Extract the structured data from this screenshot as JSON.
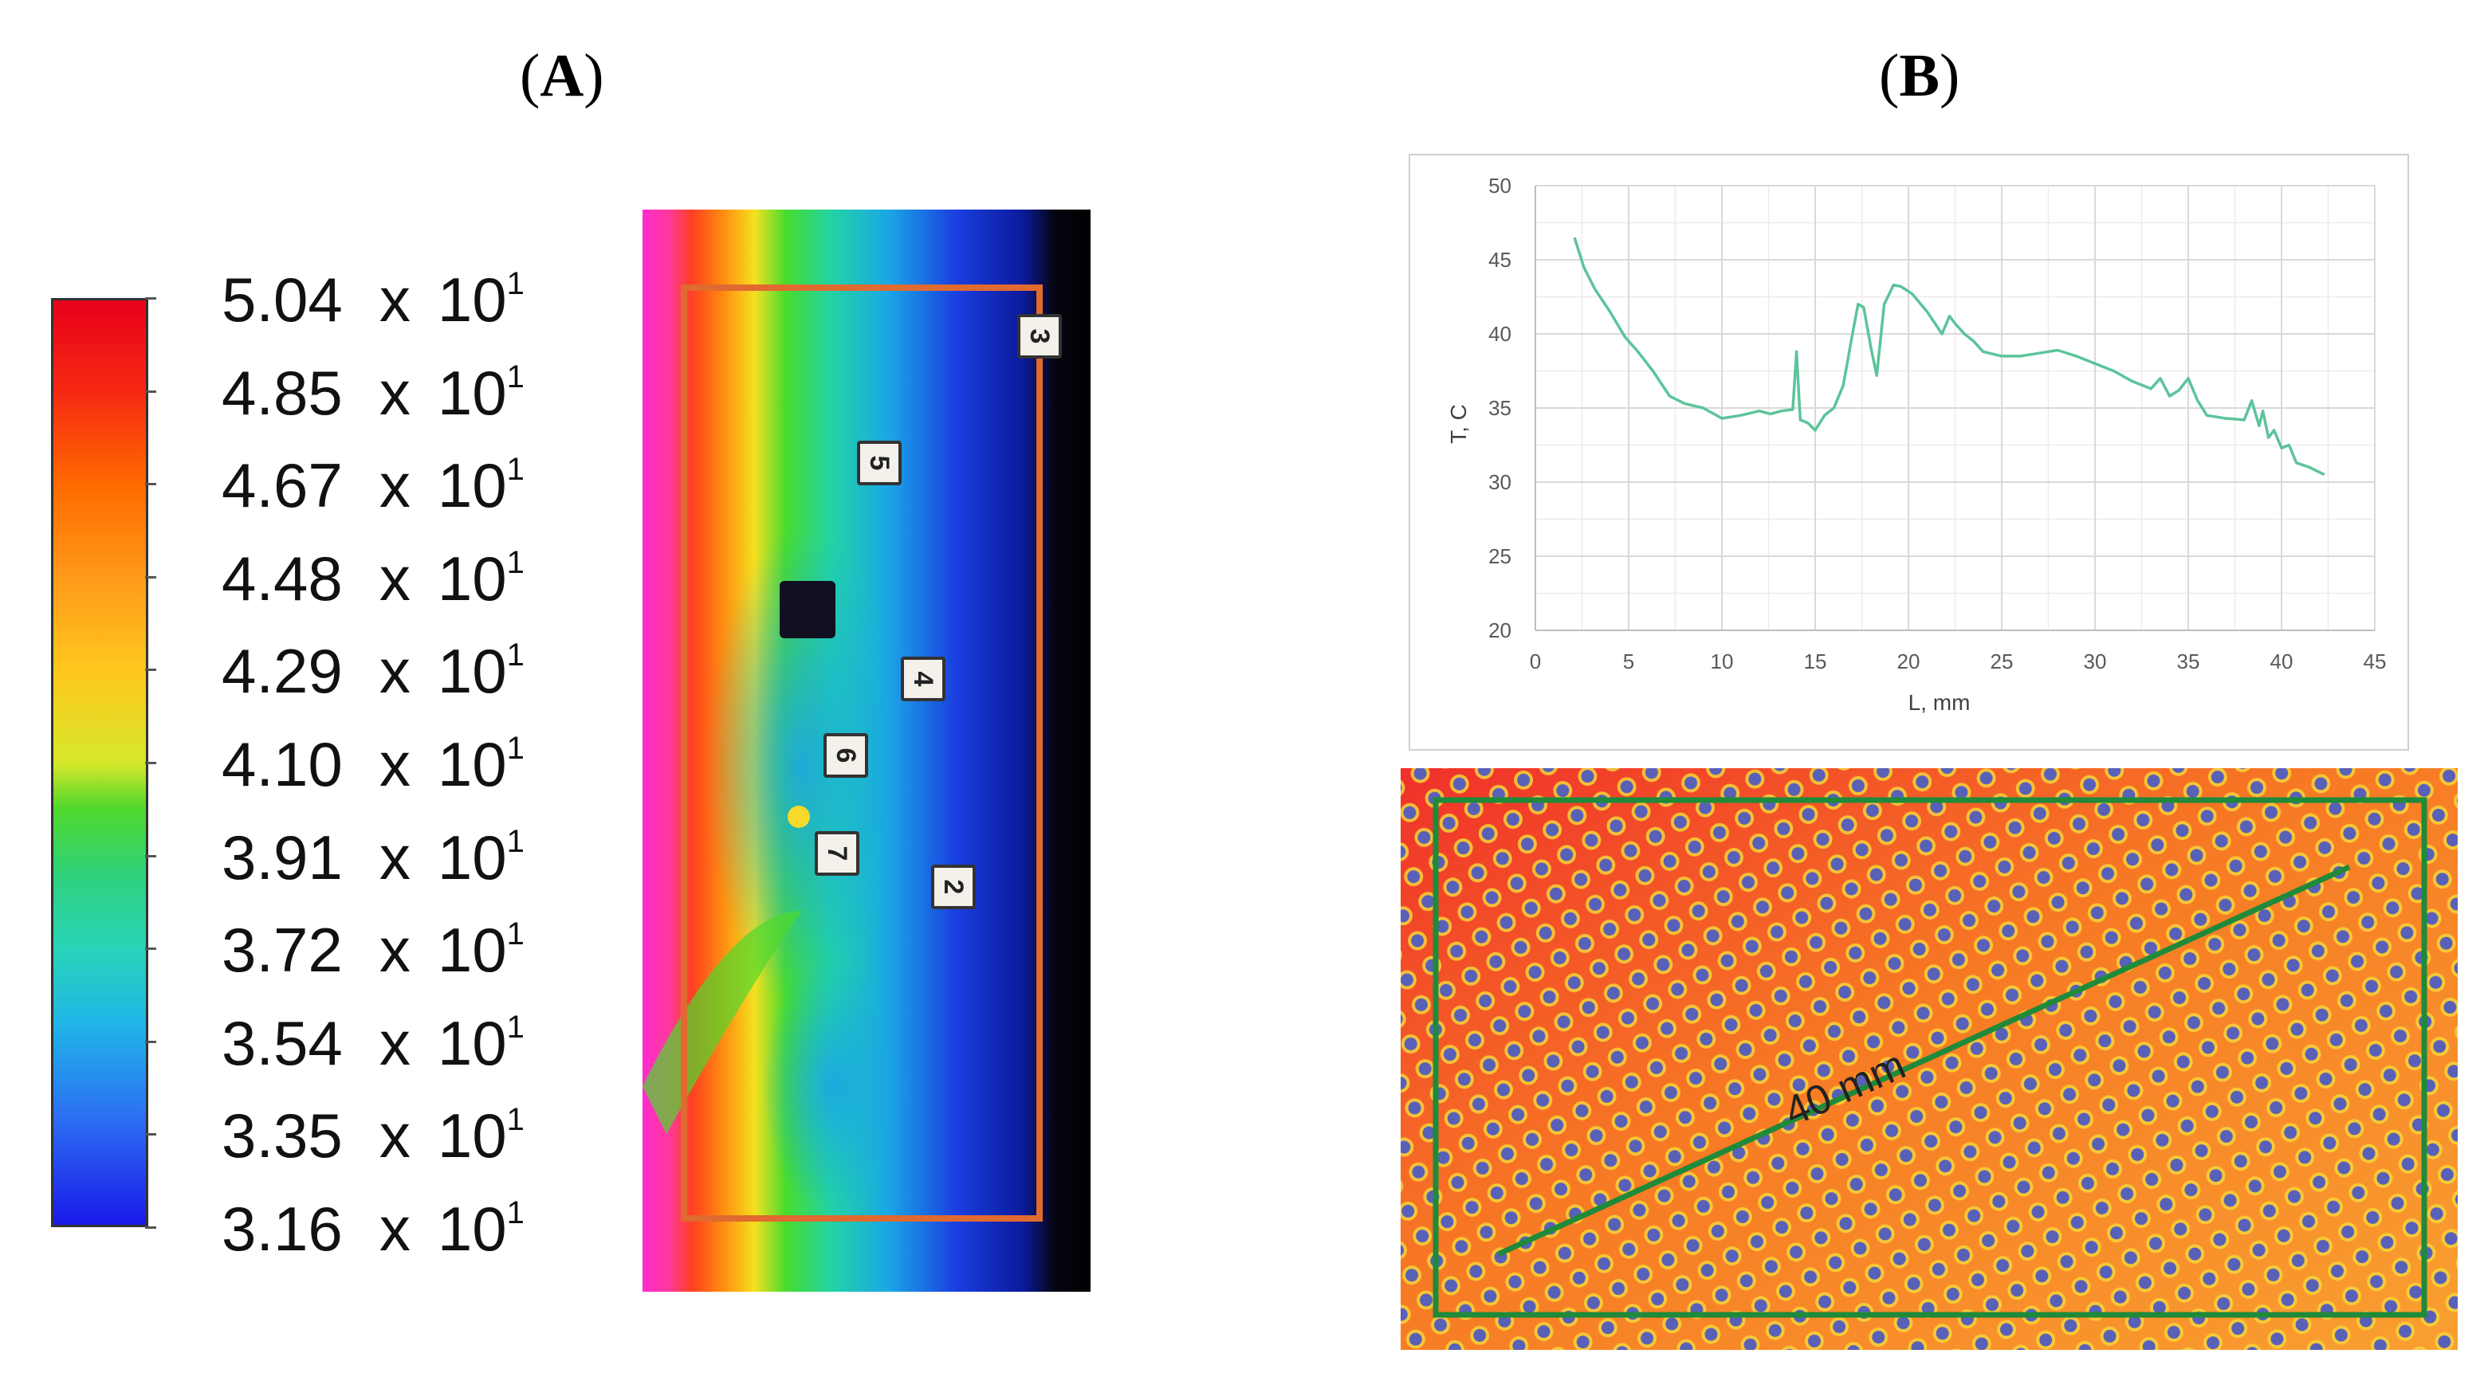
{
  "panels": {
    "a_label": "A",
    "b_label": "B"
  },
  "color_scale": {
    "labels": [
      {
        "mantissa": "5.04",
        "x": "x",
        "base": "10",
        "exp": "1"
      },
      {
        "mantissa": "4.85",
        "x": "x",
        "base": "10",
        "exp": "1"
      },
      {
        "mantissa": "4.67",
        "x": "x",
        "base": "10",
        "exp": "1"
      },
      {
        "mantissa": "4.48",
        "x": "x",
        "base": "10",
        "exp": "1"
      },
      {
        "mantissa": "4.29",
        "x": "x",
        "base": "10",
        "exp": "1"
      },
      {
        "mantissa": "4.10",
        "x": "x",
        "base": "10",
        "exp": "1"
      },
      {
        "mantissa": "3.91",
        "x": "x",
        "base": "10",
        "exp": "1"
      },
      {
        "mantissa": "3.72",
        "x": "x",
        "base": "10",
        "exp": "1"
      },
      {
        "mantissa": "3.54",
        "x": "x",
        "base": "10",
        "exp": "1"
      },
      {
        "mantissa": "3.35",
        "x": "x",
        "base": "10",
        "exp": "1"
      },
      {
        "mantissa": "3.16",
        "x": "x",
        "base": "10",
        "exp": "1"
      }
    ],
    "top_color": "#e8001a",
    "bottom_color": "#1a19e8"
  },
  "thermal_markers": [
    "3",
    "5",
    "4",
    "6",
    "7",
    "2"
  ],
  "chart_data": {
    "type": "line",
    "title": "",
    "xlabel": "L, mm",
    "ylabel": "T, C",
    "xlim": [
      0,
      45
    ],
    "ylim": [
      20,
      50
    ],
    "xticks": [
      0,
      5,
      10,
      15,
      20,
      25,
      30,
      35,
      40,
      45
    ],
    "yticks": [
      20,
      25,
      30,
      35,
      40,
      45,
      50
    ],
    "grid": true,
    "line_color": "#5cc49a",
    "series": [
      {
        "name": "T",
        "x": [
          2.1,
          2.6,
          3.2,
          4.0,
          4.8,
          5.5,
          6.3,
          7.2,
          8.0,
          9.0,
          10.0,
          11.0,
          12.0,
          12.6,
          13.2,
          13.8,
          14.0,
          14.2,
          14.6,
          15.0,
          15.5,
          16.0,
          16.5,
          17.0,
          17.3,
          17.6,
          18.0,
          18.3,
          18.7,
          19.2,
          19.6,
          20.2,
          21.0,
          21.8,
          22.2,
          22.5,
          23.0,
          23.5,
          24.0,
          25.0,
          26.0,
          27.0,
          28.0,
          29.0,
          30.0,
          31.0,
          32.0,
          33.0,
          33.5,
          34.0,
          34.5,
          35.0,
          35.5,
          36.0,
          37.0,
          38.0,
          38.4,
          38.8,
          39.0,
          39.3,
          39.6,
          40.0,
          40.4,
          40.8,
          41.5,
          42.3
        ],
        "y": [
          46.5,
          44.5,
          43.0,
          41.5,
          39.8,
          38.8,
          37.5,
          35.8,
          35.3,
          35.0,
          34.3,
          34.5,
          34.8,
          34.6,
          34.8,
          34.9,
          38.8,
          34.2,
          34.0,
          33.5,
          34.5,
          35.0,
          36.5,
          40.0,
          42.0,
          41.8,
          39.0,
          37.2,
          42.0,
          43.3,
          43.2,
          42.7,
          41.5,
          40.0,
          41.2,
          40.7,
          40.0,
          39.5,
          38.8,
          38.5,
          38.5,
          38.7,
          38.9,
          38.5,
          38.0,
          37.5,
          36.8,
          36.3,
          37.0,
          35.8,
          36.2,
          37.0,
          35.5,
          34.5,
          34.3,
          34.2,
          35.5,
          33.8,
          34.8,
          33.0,
          33.5,
          32.3,
          32.5,
          31.3,
          31.0,
          30.5
        ]
      }
    ]
  },
  "perforated_image": {
    "measurement_label": "40 mm",
    "frame_color": "#1f8a3a",
    "background_color": "#f57a2a",
    "hole_color": "#5860b8"
  }
}
